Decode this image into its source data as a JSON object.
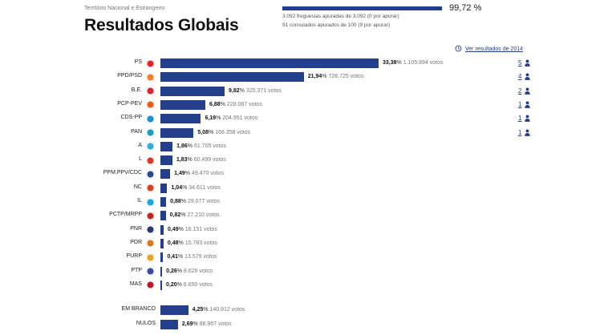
{
  "header": {
    "subtitle": "Território Nacional e Estrangeiro",
    "title": "Resultados Globais"
  },
  "progress": {
    "fraction": 0.9972,
    "percent_label": "99,72 %",
    "freguesias": "3.092 freguesias apuradas de 3.092 (0 por apurar)",
    "consulados": "91 consulados apurados de 100 (9 por apurar)"
  },
  "history_link": "Ver resultados de 2014",
  "colors": {
    "bar": "#233e8a",
    "seat": "#233e8a"
  },
  "chart_data": {
    "type": "bar",
    "orientation": "horizontal",
    "categories": [
      "PS",
      "PPD/PSD",
      "B.E.",
      "PCP-PEV",
      "CDS-PP",
      "PAN",
      "A",
      "L",
      "PPM.PPV/CDC",
      "NC",
      "IL",
      "PCTP/MRPP",
      "PNR",
      "PDR",
      "PURP",
      "PTP",
      "MAS"
    ],
    "values": [
      33.38,
      21.94,
      9.82,
      6.88,
      6.19,
      5.08,
      1.86,
      1.83,
      1.49,
      1.04,
      0.88,
      0.82,
      0.49,
      0.48,
      0.41,
      0.26,
      0.2
    ],
    "pct_labels": [
      "33,38",
      "21,94",
      "9,82",
      "6,88",
      "6,19",
      "5,08",
      "1,86",
      "1,83",
      "1,49",
      "1,04",
      "0,88",
      "0,82",
      "0,49",
      "0,48",
      "0,41",
      "0,26",
      "0,20"
    ],
    "votes": [
      "1.105.894 votos",
      "726.725 votos",
      "325.371 votos",
      "228.087 votos",
      "204.951 votos",
      "168.358 votos",
      "61.705 votos",
      "60.499 votos",
      "49.470 votos",
      "34.611 votos",
      "29.077 votos",
      "27.210 votos",
      "16.151 votos",
      "15.783 votos",
      "13.579 votos",
      "8.629 votos",
      "6.650 votos"
    ],
    "seats": [
      "5",
      "4",
      "2",
      "1",
      "1",
      "1",
      "",
      "",
      "",
      "",
      "",
      "",
      "",
      "",
      "",
      "",
      ""
    ],
    "logos": [
      "ps-logo",
      "psd-logo",
      "be-logo",
      "pcp-logo",
      "cds-logo",
      "pan-logo",
      "aliança-logo",
      "livre-logo",
      "ppm-logo",
      "nc-logo",
      "il-logo",
      "pctp-logo",
      "pnr-logo",
      "pdr-logo",
      "purp-logo",
      "ptp-logo",
      "mas-logo"
    ],
    "logo_colors": [
      "#e3242b",
      "#f58220",
      "#d9232d",
      "#e85d10",
      "#1a8fd6",
      "#1aa0b8",
      "#33aadc",
      "#d63a2a",
      "#2a4a8a",
      "#d4451a",
      "#1aa7e0",
      "#c4261d",
      "#2a3a6a",
      "#d27a1a",
      "#e8a324",
      "#3a4aa0",
      "#b61c2c"
    ],
    "extra": {
      "categories": [
        "EM BRANCO",
        "NULOS"
      ],
      "values": [
        4.25,
        2.69
      ],
      "pct_labels": [
        "4,25",
        "2,69"
      ],
      "votes": [
        "140.912 votos",
        "88.967 votos"
      ]
    },
    "xlim": [
      0,
      33.38
    ]
  }
}
